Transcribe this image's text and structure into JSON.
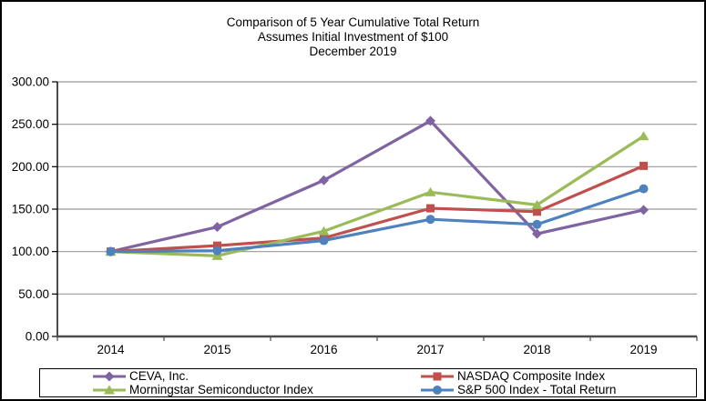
{
  "chart_data": {
    "type": "line",
    "title": "Comparison of 5 Year Cumulative Total Return",
    "subtitle": "Assumes Initial Investment of $100",
    "subtitle2": "December 2019",
    "categories": [
      "2014",
      "2015",
      "2016",
      "2017",
      "2018",
      "2019"
    ],
    "series": [
      {
        "name": "CEVA, Inc.",
        "color": "#8064A2",
        "marker": "diamond",
        "values": [
          100,
          129,
          184,
          254,
          121,
          149
        ]
      },
      {
        "name": "NASDAQ Composite Index",
        "color": "#C0504D",
        "marker": "square",
        "values": [
          100,
          107,
          116,
          151,
          147,
          201
        ]
      },
      {
        "name": "Morningstar Semiconductor Index",
        "color": "#9BBB59",
        "marker": "triangle",
        "values": [
          100,
          95,
          124,
          170,
          155,
          236
        ]
      },
      {
        "name": "S&P 500 Index - Total Return",
        "color": "#4F81BD",
        "marker": "circle",
        "values": [
          100,
          101,
          113,
          138,
          132,
          174
        ]
      }
    ],
    "ylim": [
      0,
      300
    ],
    "ytick_step": 50,
    "ytick_labels": [
      "0.00",
      "50.00",
      "100.00",
      "150.00",
      "200.00",
      "250.00",
      "300.00"
    ],
    "grid": true,
    "legend_position": "bottom",
    "colors": {
      "gridline": "#9a9a9a",
      "y_axis": "#000000",
      "x_axis": "#4d4d4d",
      "text": "#000000",
      "border": "#000000"
    }
  }
}
